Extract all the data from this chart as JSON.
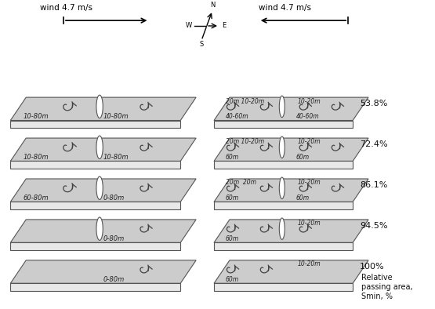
{
  "background": "#ffffff",
  "panel_color": "#cccccc",
  "panel_edge": "#555555",
  "face_color": "#e8e8e8",
  "wind_left_label": "wind 4.7 m/s",
  "wind_right_label": "wind 4.7 m/s",
  "percentages": [
    "53.8%",
    "72.4%",
    "86.1%",
    "94.5%",
    "100%"
  ],
  "right_label_lines": [
    "Relative",
    "passing area,",
    "Smin, %"
  ],
  "rows_left": [
    {
      "left": "10-80m",
      "right": "10-80m",
      "vortex_left": true,
      "vortex_right": true,
      "pen": true
    },
    {
      "left": "10-80m",
      "right": "10-80m",
      "vortex_left": true,
      "vortex_right": true,
      "pen": true
    },
    {
      "left": "60-80m",
      "right": "0-80m",
      "vortex_left": true,
      "vortex_right": true,
      "pen": true
    },
    {
      "left": "",
      "right": "0-80m",
      "vortex_left": false,
      "vortex_right": true,
      "pen": true
    },
    {
      "left": "",
      "right": "0-80m",
      "vortex_left": false,
      "vortex_right": true,
      "pen": false
    }
  ],
  "rows_right": [
    {
      "top_left": "20m 10-20m",
      "top_right": "10-20m",
      "bot_left": "40-60m",
      "bot_right": "40-60m",
      "nvort": 4,
      "pen": true
    },
    {
      "top_left": "20m 10-20m",
      "top_right": "10-20m",
      "bot_left": "60m",
      "bot_right": "60m",
      "nvort": 4,
      "pen": true
    },
    {
      "top_left": "20m  20m",
      "top_right": "10-20m",
      "bot_left": "60m",
      "bot_right": "60m",
      "nvort": 4,
      "pen": true
    },
    {
      "top_left": "",
      "top_right": "10-20m",
      "bot_left": "60m",
      "bot_right": "",
      "nvort": 3,
      "pen": true
    },
    {
      "top_left": "",
      "top_right": "10-20m",
      "bot_left": "60m",
      "bot_right": "",
      "nvort": 2,
      "pen": false
    }
  ]
}
